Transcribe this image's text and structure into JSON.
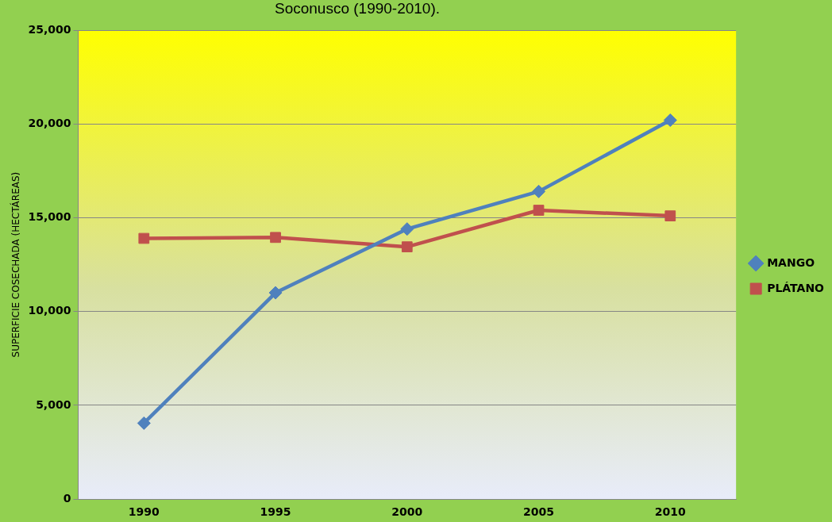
{
  "chart_data": {
    "type": "line",
    "title": "Soconusco (1990-2010).",
    "ylabel": "SUPERFICIE COSECHADA (HECTÁREAS)",
    "categories": [
      "1990",
      "1995",
      "2000",
      "2005",
      "2010"
    ],
    "series": [
      {
        "name": "MANGO",
        "color": "#4f81bd",
        "marker": "diamond",
        "values": [
          4050,
          11000,
          14400,
          16400,
          20200
        ]
      },
      {
        "name": "PLÁTANO",
        "color": "#c0504d",
        "marker": "square",
        "values": [
          13900,
          13950,
          13450,
          15400,
          15100
        ]
      }
    ],
    "ylim": [
      0,
      25000
    ],
    "yticks": [
      {
        "value": 0,
        "label": "0"
      },
      {
        "value": 5000,
        "label": "5,000"
      },
      {
        "value": 10000,
        "label": "10,000"
      },
      {
        "value": 15000,
        "label": "15,000"
      },
      {
        "value": 20000,
        "label": "20,000"
      },
      {
        "value": 25000,
        "label": "25,000"
      }
    ],
    "grid": "y",
    "legend": "right",
    "line_style": "solid"
  }
}
